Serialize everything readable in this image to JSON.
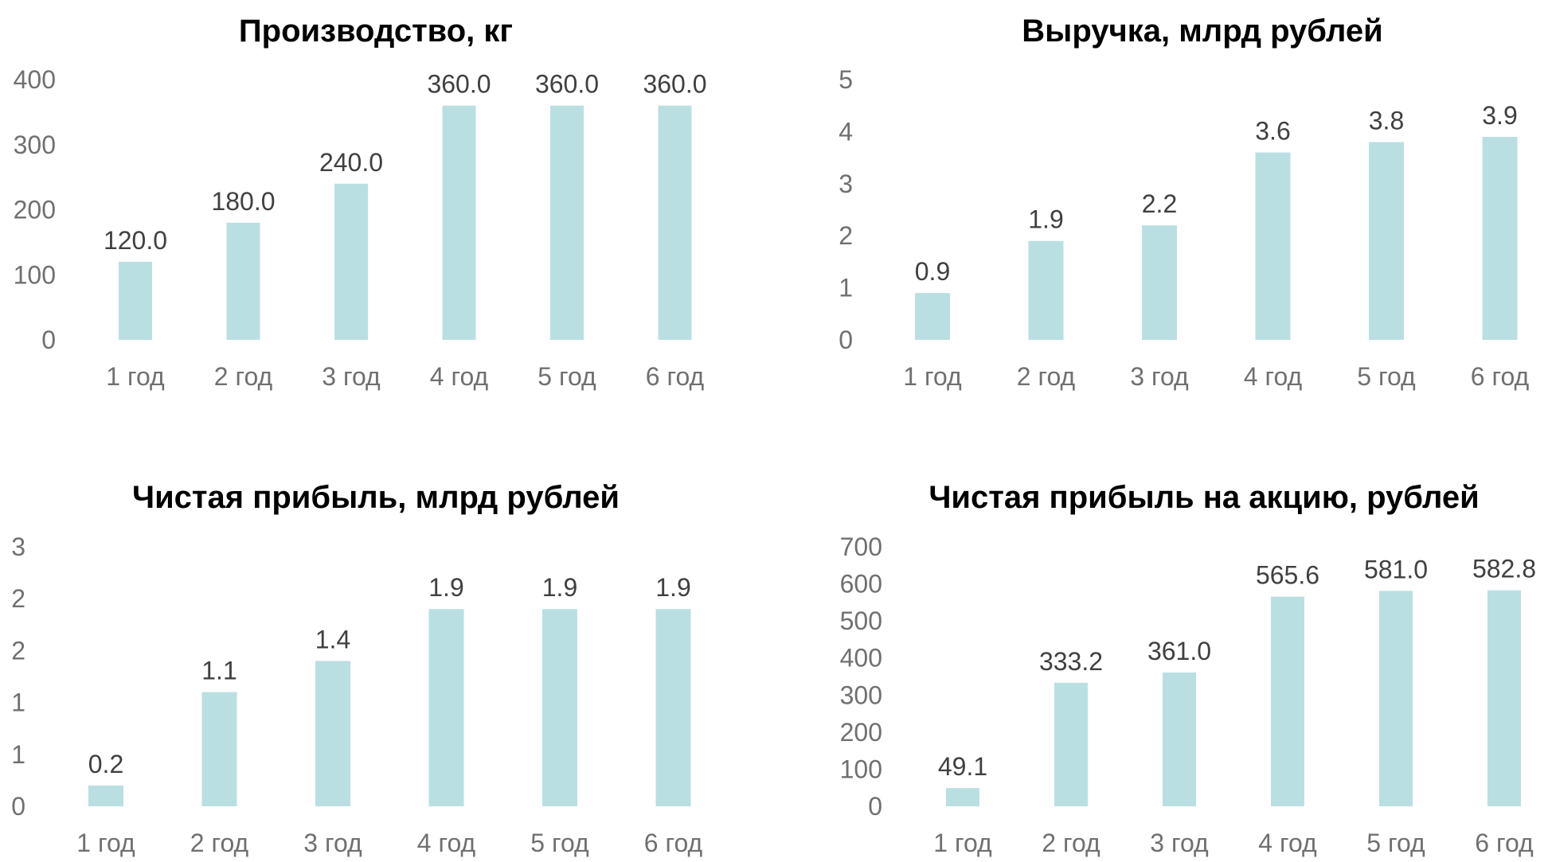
{
  "chart_data": [
    {
      "type": "bar",
      "title": "Производство, кг",
      "categories": [
        "1 год",
        "2 год",
        "3 год",
        "4 год",
        "5 год",
        "6 год"
      ],
      "values": [
        120.0,
        180.0,
        240.0,
        360.0,
        360.0,
        360.0
      ],
      "data_labels": [
        "120.0",
        "180.0",
        "240.0",
        "360.0",
        "360.0",
        "360.0"
      ],
      "y_ticks": [
        "0",
        "100",
        "200",
        "300",
        "400"
      ],
      "ylim": [
        0,
        400
      ],
      "grid": false,
      "legend": "none"
    },
    {
      "type": "bar",
      "title": "Выручка, млрд рублей",
      "categories": [
        "1 год",
        "2 год",
        "3 год",
        "4 год",
        "5 год",
        "6 год"
      ],
      "values": [
        0.9,
        1.9,
        2.2,
        3.6,
        3.8,
        3.9
      ],
      "data_labels": [
        "0.9",
        "1.9",
        "2.2",
        "3.6",
        "3.8",
        "3.9"
      ],
      "y_ticks": [
        "0",
        "1",
        "2",
        "3",
        "4",
        "5"
      ],
      "ylim": [
        0,
        5
      ],
      "grid": false,
      "legend": "none"
    },
    {
      "type": "bar",
      "title": "Чистая прибыль, млрд рублей",
      "categories": [
        "1 год",
        "2 год",
        "3 год",
        "4 год",
        "5 год",
        "6 год"
      ],
      "values": [
        0.2,
        1.1,
        1.4,
        1.9,
        1.9,
        1.9
      ],
      "data_labels": [
        "0.2",
        "1.1",
        "1.4",
        "1.9",
        "1.9",
        "1.9"
      ],
      "y_ticks": [
        "0",
        "1",
        "1",
        "2",
        "2",
        "3"
      ],
      "ylim": [
        0,
        2.5
      ],
      "grid": false,
      "legend": "none"
    },
    {
      "type": "bar",
      "title": "Чистая прибыль на акцию, рублей",
      "categories": [
        "1 год",
        "2 год",
        "3 год",
        "4 год",
        "5 год",
        "6 год"
      ],
      "values": [
        49.1,
        333.2,
        361.0,
        565.6,
        581.0,
        582.8
      ],
      "data_labels": [
        "49.1",
        "333.2",
        "361.0",
        "565.6",
        "581.0",
        "582.8"
      ],
      "y_ticks": [
        "0",
        "100",
        "200",
        "300",
        "400",
        "500",
        "600",
        "700"
      ],
      "ylim": [
        0,
        700
      ],
      "grid": false,
      "legend": "none"
    }
  ],
  "colors": {
    "bar": "#BADFE2",
    "title": "#000000",
    "tick": "#707070",
    "data_label": "#404040"
  }
}
